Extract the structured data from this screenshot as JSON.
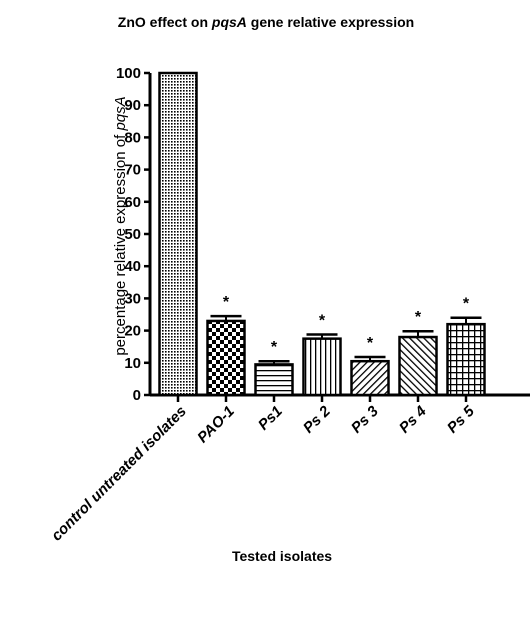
{
  "chart_data": {
    "type": "bar",
    "title_parts": [
      {
        "text": "ZnO effect on ",
        "italic": false
      },
      {
        "text": "pqsA",
        "italic": true
      },
      {
        "text": " gene relative expression",
        "italic": false
      }
    ],
    "ylabel_parts": [
      {
        "text": "percentage relative expression of ",
        "italic": false
      },
      {
        "text": "pqsA",
        "italic": true
      }
    ],
    "xlabel": "Tested isolates",
    "categories": [
      "control untreated isolates",
      "PAO-1",
      "Ps1",
      "Ps 2",
      "Ps 3",
      "Ps 4",
      "Ps 5"
    ],
    "values": [
      100,
      23,
      9.5,
      17.5,
      10.5,
      18,
      22
    ],
    "errors": [
      0,
      1.5,
      1,
      1.3,
      1.3,
      1.8,
      2
    ],
    "significance": [
      "",
      "*",
      "*",
      "*",
      "*",
      "*",
      "*"
    ],
    "patterns": [
      "dots",
      "checker",
      "hlines",
      "vlines",
      "diag-right",
      "diag-left",
      "grid"
    ],
    "ylim": [
      0,
      100
    ],
    "yticks": [
      0,
      10,
      20,
      30,
      40,
      50,
      60,
      70,
      80,
      90,
      100
    ]
  }
}
